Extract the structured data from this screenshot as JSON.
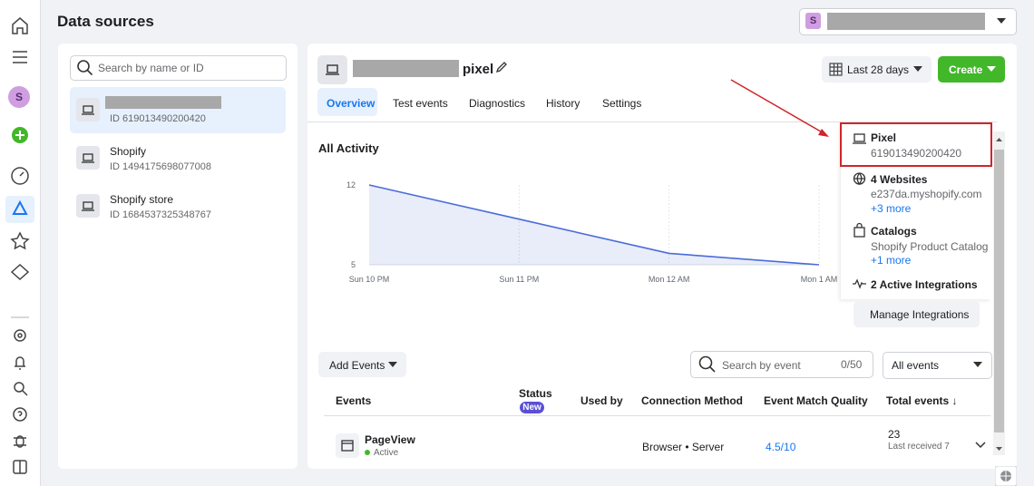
{
  "header": {
    "title": "Data sources",
    "account_initial": "S"
  },
  "sources": {
    "search_placeholder": "Search by name or ID",
    "items": [
      {
        "id": "ID 619013490200420"
      },
      {
        "name": "Shopify",
        "id": "ID 1494175698077008"
      },
      {
        "name": "Shopify store",
        "id": "ID 1684537325348767"
      }
    ]
  },
  "pixel": {
    "name_suffix": "pixel",
    "tabs": [
      "Overview",
      "Test events",
      "Diagnostics",
      "History",
      "Settings"
    ],
    "date_range": "Last 28 days",
    "create": "Create"
  },
  "chart_data": {
    "type": "line",
    "title": "All Activity",
    "categories": [
      "Sun 10 PM",
      "Sun 11 PM",
      "Mon 12 AM",
      "Mon 1 AM"
    ],
    "values": [
      12,
      9,
      6,
      5
    ],
    "color": "#4a6cd9",
    "ylim": [
      5,
      12
    ],
    "yticks": [
      5,
      12
    ],
    "grid": true
  },
  "details": {
    "pixel_label": "Pixel",
    "pixel_id": "619013490200420",
    "websites": "4 Websites",
    "website": "e237da.myshopify.com",
    "websites_more": "+3 more",
    "catalogs": "Catalogs",
    "catalog": "Shopify Product Catalog",
    "catalogs_more": "+1 more",
    "integrations": "2 Active Integrations",
    "manage": "Manage Integrations"
  },
  "events": {
    "add": "Add Events",
    "search_placeholder": "Search by event",
    "counter": "0/50",
    "filter": "All events",
    "columns": [
      "Events",
      "Status",
      "Used by",
      "Connection Method",
      "Event Match Quality",
      "Total events ↓"
    ],
    "status_badge": "New",
    "rows": [
      {
        "event": "PageView",
        "state": "Active",
        "connection": "Browser • Server",
        "match_quality": "4.5/10",
        "total": 23,
        "last_received": "Last received 7"
      }
    ]
  }
}
